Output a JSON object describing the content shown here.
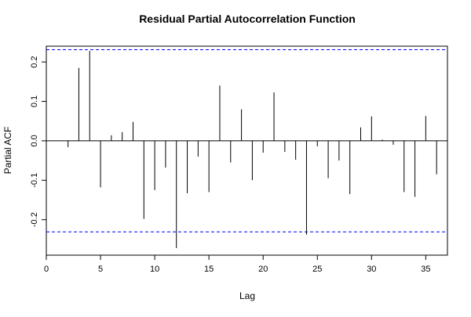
{
  "chart_data": {
    "type": "bar",
    "title": "Residual Partial Autocorrelation Function",
    "xlabel": "Lag",
    "ylabel": "Partial ACF",
    "xlim": [
      0,
      37
    ],
    "ylim": [
      -0.29,
      0.24
    ],
    "xticks": [
      0,
      5,
      10,
      15,
      20,
      25,
      30,
      35
    ],
    "xtick_labels": [
      "0",
      "5",
      "10",
      "15",
      "20",
      "25",
      "30",
      "35"
    ],
    "yticks": [
      -0.2,
      -0.1,
      0.0,
      0.1,
      0.2
    ],
    "ytick_labels": [
      "-0.2",
      "-0.1",
      "0.0",
      "0.1",
      "0.2"
    ],
    "confidence_band": [
      0.231,
      -0.231
    ],
    "confidence_color": "#0000ff",
    "bar_color": "#000000",
    "grid": false,
    "x": [
      1,
      2,
      3,
      4,
      5,
      6,
      7,
      8,
      9,
      10,
      11,
      12,
      13,
      14,
      15,
      16,
      17,
      18,
      19,
      20,
      21,
      22,
      23,
      24,
      25,
      26,
      27,
      28,
      29,
      30,
      31,
      32,
      33,
      34,
      35,
      36
    ],
    "values": [
      0.0,
      -0.016,
      0.185,
      0.228,
      -0.118,
      0.014,
      0.022,
      0.048,
      -0.198,
      -0.125,
      -0.068,
      -0.272,
      -0.133,
      -0.04,
      -0.13,
      0.14,
      -0.055,
      0.08,
      -0.1,
      -0.03,
      0.123,
      -0.028,
      -0.048,
      -0.238,
      -0.014,
      -0.095,
      -0.05,
      -0.135,
      0.034,
      0.062,
      0.003,
      -0.01,
      -0.13,
      -0.142,
      0.063,
      -0.085
    ]
  }
}
